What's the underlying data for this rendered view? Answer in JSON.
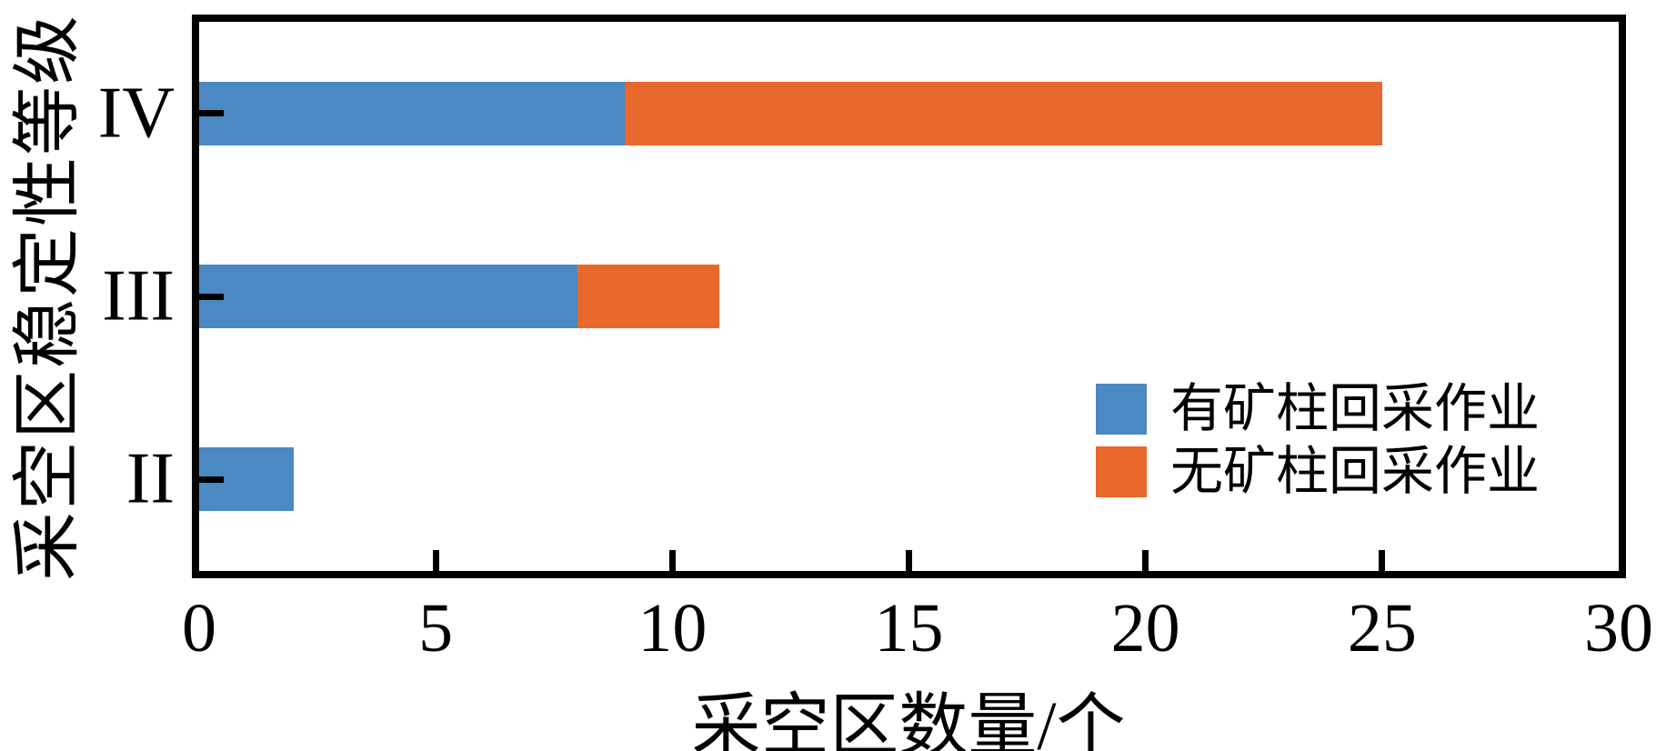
{
  "figure": {
    "background": "#ffffff",
    "axis_color": "#000000"
  },
  "chart_data": {
    "type": "bar",
    "orientation": "horizontal",
    "stacked": true,
    "title": "",
    "xlabel": "采空区数量/个",
    "ylabel": "采空区稳定性等级",
    "categories": [
      "IV",
      "III",
      "II"
    ],
    "series": [
      {
        "name": "有矿柱回采作业",
        "color": "#4a89c1",
        "values": [
          9,
          8,
          2
        ]
      },
      {
        "name": "无矿柱回采作业",
        "color": "#e8682c",
        "values": [
          16,
          3,
          0
        ]
      }
    ],
    "totals": [
      25,
      11,
      2
    ],
    "xlim": [
      0,
      30
    ],
    "xticks": [
      0,
      5,
      10,
      15,
      20,
      25,
      30
    ],
    "grid": false,
    "tick_direction": "in",
    "legend_position": "center-right",
    "legend": [
      "有矿柱回采作业",
      "无矿柱回采作业"
    ]
  }
}
